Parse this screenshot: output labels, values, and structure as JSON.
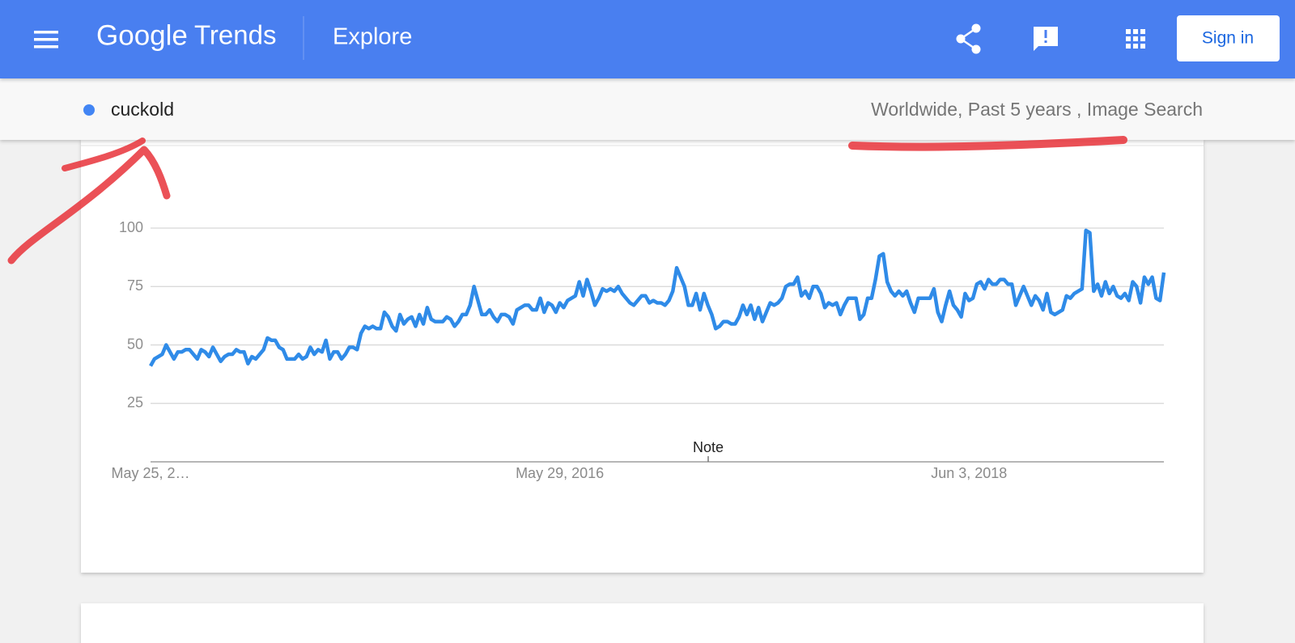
{
  "header": {
    "logo": "Google",
    "product": "Trends",
    "page": "Explore",
    "sign_in": "Sign in"
  },
  "query": {
    "term": "cuckold",
    "filters": "Worldwide, Past 5 years , Image Search"
  },
  "chart_data": {
    "type": "line",
    "color": "#2f8be8",
    "annotation": "Note",
    "categories": [
      "May 25, 2…",
      null,
      null,
      null,
      null,
      null,
      null,
      null,
      null,
      null,
      null,
      null,
      null,
      null,
      null,
      null,
      null,
      null,
      null,
      null,
      null,
      null,
      null,
      null,
      null,
      null,
      null,
      null,
      null,
      null,
      null,
      null,
      null,
      null,
      null,
      null,
      null,
      null,
      null,
      null,
      null,
      null,
      null,
      null,
      null,
      null,
      null,
      null,
      null,
      null,
      null,
      null,
      null,
      null,
      null,
      null,
      null,
      null,
      null,
      null,
      null,
      null,
      null,
      null,
      null,
      null,
      null,
      null,
      null,
      null,
      null,
      null,
      null,
      null,
      null,
      null,
      null,
      null,
      null,
      null,
      null,
      null,
      null,
      null,
      null,
      null,
      null,
      null,
      null,
      null,
      null,
      null,
      null,
      null,
      null,
      null,
      null,
      null,
      null,
      null,
      null,
      null,
      null,
      null,
      null,
      "May 29, 2016",
      null,
      null,
      null,
      null,
      null,
      null,
      null,
      null,
      null,
      null,
      null,
      null,
      null,
      null,
      null,
      null,
      null,
      null,
      null,
      null,
      null,
      null,
      null,
      null,
      null,
      null,
      null,
      null,
      null,
      null,
      null,
      null,
      null,
      null,
      null,
      null,
      null,
      null,
      null,
      null,
      null,
      null,
      null,
      null,
      null,
      null,
      null,
      null,
      null,
      null,
      null,
      null,
      null,
      null,
      null,
      null,
      null,
      null,
      null,
      null,
      null,
      null,
      null,
      null,
      null,
      null,
      null,
      null,
      null,
      null,
      null,
      null,
      null,
      null,
      null,
      null,
      null,
      null,
      null,
      null,
      null,
      null,
      null,
      null,
      null,
      null,
      null,
      null,
      null,
      null,
      null,
      null,
      null,
      null,
      null,
      null,
      null,
      null,
      null,
      null,
      null,
      null,
      null,
      null,
      "Jun 3, 2018",
      null,
      null,
      null,
      null,
      null,
      null,
      null,
      null,
      null,
      null,
      null,
      null,
      null,
      null,
      null,
      null,
      null,
      null,
      null,
      null,
      null,
      null,
      null,
      null,
      null,
      null,
      null,
      null,
      null,
      null,
      null,
      null,
      null,
      null,
      null,
      null,
      null,
      null,
      null,
      null,
      null,
      null,
      null,
      null,
      null,
      null,
      null,
      null,
      null,
      null
    ],
    "values": [
      41,
      44,
      45,
      46,
      50,
      47,
      44,
      47,
      47,
      48,
      48,
      46,
      44,
      48,
      47,
      45,
      49,
      46,
      43,
      45,
      46,
      46,
      48,
      47,
      47,
      42,
      45,
      44,
      46,
      48,
      53,
      52,
      52,
      49,
      48,
      44,
      44,
      44,
      46,
      44,
      45,
      49,
      46,
      48,
      47,
      52,
      44,
      47,
      47,
      44,
      46,
      49,
      49,
      48,
      55,
      58,
      57,
      58,
      57,
      57,
      64,
      62,
      58,
      56,
      63,
      59,
      61,
      62,
      58,
      63,
      59,
      66,
      61,
      60,
      60,
      60,
      62,
      61,
      58,
      60,
      63,
      63,
      67,
      75,
      69,
      63,
      63,
      65,
      62,
      60,
      63,
      63,
      62,
      59,
      65,
      66,
      67,
      67,
      65,
      65,
      70,
      64,
      68,
      67,
      64,
      68,
      66,
      69,
      70,
      71,
      77,
      71,
      78,
      73,
      67,
      70,
      74,
      73,
      74,
      73,
      75,
      72,
      70,
      68,
      67,
      69,
      71,
      71,
      68,
      69,
      68,
      68,
      67,
      69,
      73,
      83,
      79,
      75,
      67,
      67,
      72,
      65,
      72,
      67,
      63,
      57,
      58,
      60,
      60,
      59,
      59,
      62,
      67,
      63,
      67,
      61,
      66,
      60,
      64,
      68,
      67,
      68,
      70,
      75,
      76,
      76,
      79,
      71,
      73,
      70,
      75,
      75,
      72,
      66,
      68,
      67,
      68,
      63,
      67,
      70,
      70,
      70,
      61,
      63,
      70,
      70,
      78,
      88,
      89,
      77,
      73,
      71,
      73,
      71,
      73,
      68,
      64,
      70,
      70,
      70,
      70,
      74,
      64,
      60,
      67,
      73,
      67,
      65,
      62,
      72,
      69,
      70,
      76,
      77,
      74,
      78,
      76,
      76,
      78,
      78,
      76,
      76,
      67,
      71,
      75,
      71,
      67,
      71,
      69,
      65,
      72,
      64,
      63,
      64,
      65,
      71,
      70,
      72,
      73,
      74,
      99,
      98,
      73,
      76,
      71,
      77,
      72,
      75,
      71,
      70,
      72,
      69,
      77,
      75,
      68,
      79,
      76,
      79,
      70,
      69,
      81
    ],
    "ylim": [
      0,
      100
    ],
    "yticks": [
      25,
      50,
      75,
      100
    ],
    "grid": true
  }
}
